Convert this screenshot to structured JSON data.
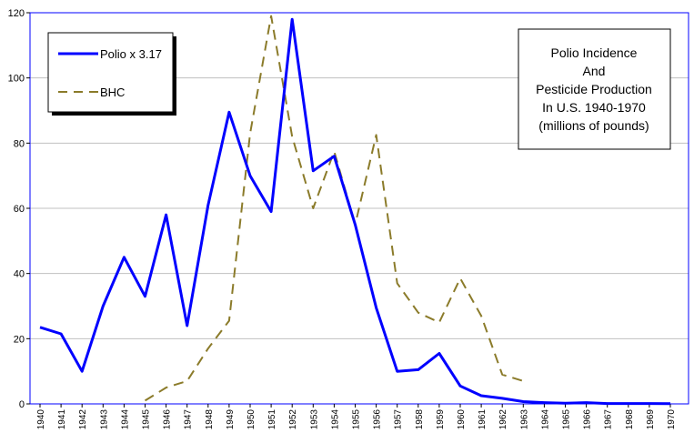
{
  "chart_data": {
    "type": "line",
    "x": [
      1940,
      1941,
      1942,
      1943,
      1944,
      1945,
      1946,
      1947,
      1948,
      1949,
      1950,
      1951,
      1952,
      1953,
      1954,
      1955,
      1956,
      1957,
      1958,
      1959,
      1960,
      1961,
      1962,
      1963,
      1964,
      1965,
      1966,
      1967,
      1968,
      1969,
      1970
    ],
    "ylim": [
      0,
      120
    ],
    "yticks": [
      0,
      20,
      40,
      60,
      80,
      100,
      120
    ],
    "grid": true,
    "legend_position": "top-left",
    "series": [
      {
        "name": "Polio x 3.17",
        "style": "solid",
        "color": "#0000ff",
        "values": [
          23.5,
          21.5,
          10,
          30,
          45,
          33,
          58,
          24,
          61,
          89.5,
          70,
          59,
          118,
          71.5,
          76,
          55,
          29.5,
          10,
          10.5,
          15.5,
          5.5,
          2.5,
          1.7,
          0.7,
          0.4,
          0.2,
          0.4,
          0.1,
          0.1,
          0.1,
          0.05
        ]
      },
      {
        "name": "BHC",
        "style": "dashed",
        "color": "#8b7b2a",
        "values": [
          null,
          null,
          null,
          null,
          null,
          1,
          5,
          7,
          17,
          25.5,
          83,
          119,
          82,
          60,
          77.5,
          55,
          82.5,
          37,
          28,
          25,
          38.5,
          27,
          9,
          7,
          null,
          null,
          null,
          null,
          null,
          null,
          null
        ]
      }
    ],
    "annotation": [
      "Polio Incidence",
      "And",
      "Pesticide Production",
      "In U.S. 1940-1970",
      "(millions of pounds)"
    ]
  }
}
